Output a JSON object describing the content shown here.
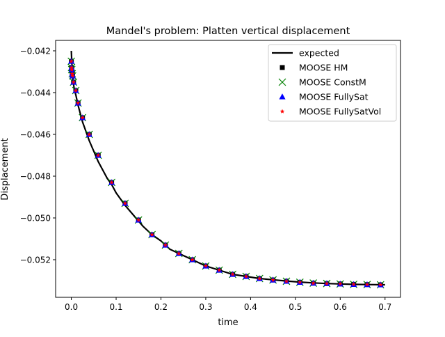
{
  "chart_data": {
    "type": "line",
    "title": "Mandel's problem: Platten vertical displacement",
    "xlabel": "time",
    "ylabel": "Displacement",
    "xlim": [
      -0.035,
      0.7345
    ],
    "ylim": [
      -0.0538,
      -0.0415
    ],
    "xticks": [
      0.0,
      0.1,
      0.2,
      0.3,
      0.4,
      0.5,
      0.6,
      0.7
    ],
    "xtick_labels": [
      "0.0",
      "0.1",
      "0.2",
      "0.3",
      "0.4",
      "0.5",
      "0.6",
      "0.7"
    ],
    "yticks": [
      -0.042,
      -0.044,
      -0.046,
      -0.048,
      -0.05,
      -0.052
    ],
    "ytick_labels": [
      "−0.042",
      "−0.044",
      "−0.046",
      "−0.048",
      "−0.050",
      "−0.052"
    ],
    "grid": false,
    "legend_position": "top-right",
    "series": [
      {
        "name": "expected",
        "style": "line",
        "color": "#000000",
        "x": [
          0.0,
          0.001,
          0.002,
          0.003,
          0.005,
          0.007,
          0.01,
          0.015,
          0.02,
          0.025,
          0.03,
          0.04,
          0.05,
          0.06,
          0.07,
          0.08,
          0.09,
          0.1,
          0.12,
          0.14,
          0.16,
          0.18,
          0.2,
          0.22,
          0.24,
          0.26,
          0.28,
          0.3,
          0.33,
          0.36,
          0.39,
          0.42,
          0.45,
          0.48,
          0.51,
          0.54,
          0.57,
          0.6,
          0.63,
          0.66,
          0.7
        ],
        "y": [
          -0.042,
          -0.0425,
          -0.0429,
          -0.0432,
          -0.0436,
          -0.0439,
          -0.0441,
          -0.0446,
          -0.045,
          -0.0454,
          -0.0457,
          -0.0463,
          -0.0468,
          -0.0473,
          -0.0477,
          -0.0481,
          -0.0484,
          -0.0488,
          -0.0494,
          -0.0499,
          -0.0504,
          -0.0508,
          -0.0511,
          -0.0515,
          -0.0517,
          -0.0519,
          -0.0521,
          -0.0523,
          -0.0525,
          -0.0527,
          -0.0528,
          -0.0529,
          -0.05296,
          -0.05302,
          -0.05307,
          -0.05311,
          -0.05314,
          -0.05316,
          -0.05318,
          -0.05319,
          -0.0532
        ]
      },
      {
        "name": "MOOSE HM",
        "style": "marker",
        "marker": "square",
        "color": "#000000",
        "x": [
          0.0001,
          0.0005,
          0.001,
          0.002,
          0.003,
          0.005,
          0.01,
          0.015,
          0.025,
          0.04,
          0.06,
          0.09,
          0.12,
          0.15,
          0.18,
          0.21,
          0.24,
          0.27,
          0.3,
          0.33,
          0.36,
          0.39,
          0.42,
          0.45,
          0.48,
          0.51,
          0.54,
          0.57,
          0.6,
          0.63,
          0.66,
          0.69
        ],
        "y": [
          -0.0425,
          -0.0428,
          -0.0429,
          -0.0431,
          -0.0432,
          -0.0435,
          -0.0439,
          -0.0445,
          -0.0452,
          -0.046,
          -0.047,
          -0.0483,
          -0.0493,
          -0.0501,
          -0.0508,
          -0.0513,
          -0.0517,
          -0.052,
          -0.0523,
          -0.0525,
          -0.0527,
          -0.0528,
          -0.0529,
          -0.05297,
          -0.05303,
          -0.05308,
          -0.05312,
          -0.05314,
          -0.05316,
          -0.05318,
          -0.05319,
          -0.0532
        ]
      },
      {
        "name": "MOOSE ConstM",
        "style": "marker",
        "marker": "x",
        "color": "#008000",
        "x": [
          0.0001,
          0.0005,
          0.001,
          0.002,
          0.003,
          0.005,
          0.01,
          0.015,
          0.025,
          0.04,
          0.06,
          0.09,
          0.12,
          0.15,
          0.18,
          0.21,
          0.24,
          0.27,
          0.3,
          0.33,
          0.36,
          0.39,
          0.42,
          0.45,
          0.48,
          0.51,
          0.54,
          0.57,
          0.6,
          0.63,
          0.66,
          0.69
        ],
        "y": [
          -0.0425,
          -0.0428,
          -0.0429,
          -0.0431,
          -0.0432,
          -0.0435,
          -0.0439,
          -0.0445,
          -0.0452,
          -0.046,
          -0.047,
          -0.0483,
          -0.0493,
          -0.0501,
          -0.0508,
          -0.0513,
          -0.0517,
          -0.052,
          -0.0523,
          -0.0525,
          -0.0527,
          -0.0528,
          -0.0529,
          -0.05297,
          -0.05303,
          -0.05308,
          -0.05312,
          -0.05314,
          -0.05316,
          -0.05318,
          -0.05319,
          -0.0532
        ]
      },
      {
        "name": "MOOSE FullySat",
        "style": "marker",
        "marker": "triangle-up",
        "color": "#0000ff",
        "x": [
          0.0001,
          0.0005,
          0.001,
          0.002,
          0.003,
          0.005,
          0.01,
          0.015,
          0.025,
          0.04,
          0.06,
          0.09,
          0.12,
          0.15,
          0.18,
          0.21,
          0.24,
          0.27,
          0.3,
          0.33,
          0.36,
          0.39,
          0.42,
          0.45,
          0.48,
          0.51,
          0.54,
          0.57,
          0.6,
          0.63,
          0.66,
          0.69
        ],
        "y": [
          -0.0425,
          -0.0428,
          -0.0429,
          -0.0431,
          -0.0432,
          -0.0435,
          -0.0439,
          -0.0445,
          -0.0452,
          -0.046,
          -0.047,
          -0.0483,
          -0.0493,
          -0.0501,
          -0.0508,
          -0.0513,
          -0.0517,
          -0.052,
          -0.0523,
          -0.0525,
          -0.0527,
          -0.0528,
          -0.0529,
          -0.05297,
          -0.05303,
          -0.05308,
          -0.05312,
          -0.05314,
          -0.05316,
          -0.05318,
          -0.05319,
          -0.0532
        ]
      },
      {
        "name": "MOOSE FullySatVol",
        "style": "marker",
        "marker": "star",
        "color": "#ff0000",
        "x": [
          0.0001,
          0.0005,
          0.001,
          0.002,
          0.003,
          0.005,
          0.01,
          0.015,
          0.025,
          0.04,
          0.06,
          0.09,
          0.12,
          0.15,
          0.18,
          0.21,
          0.24,
          0.27,
          0.3,
          0.33,
          0.36,
          0.39,
          0.42,
          0.45,
          0.48,
          0.51,
          0.54,
          0.57,
          0.6,
          0.63,
          0.66,
          0.69
        ],
        "y": [
          -0.0425,
          -0.0428,
          -0.0429,
          -0.0431,
          -0.0432,
          -0.0435,
          -0.0439,
          -0.0445,
          -0.0452,
          -0.046,
          -0.047,
          -0.0483,
          -0.0493,
          -0.0501,
          -0.0508,
          -0.0513,
          -0.0517,
          -0.052,
          -0.0523,
          -0.0525,
          -0.0527,
          -0.0528,
          -0.0529,
          -0.05297,
          -0.05303,
          -0.05308,
          -0.05312,
          -0.05314,
          -0.05316,
          -0.05318,
          -0.05319,
          -0.0532
        ]
      }
    ]
  }
}
